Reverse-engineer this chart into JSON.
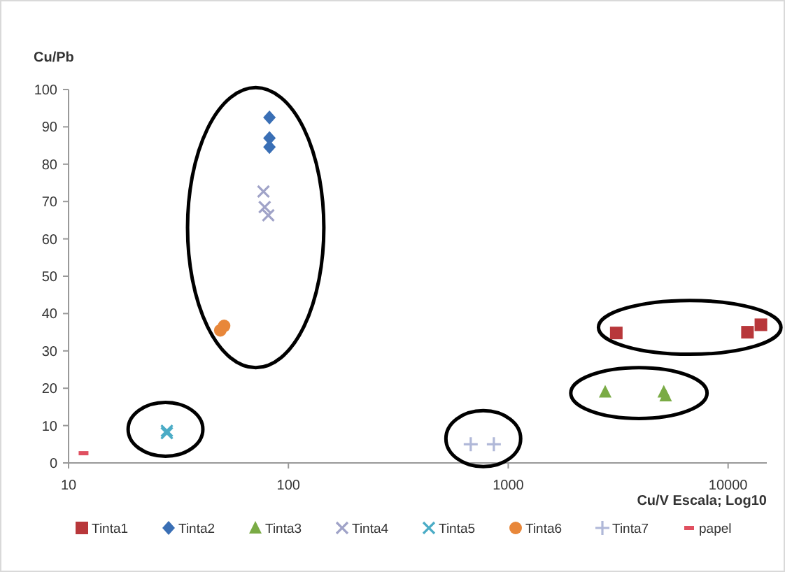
{
  "chart_data": {
    "type": "scatter",
    "ylabel": "Cu/Pb",
    "xlabel": "Cu/V Escala; Log10",
    "log": "x",
    "xlim": [
      10,
      15000
    ],
    "xticks": [
      10,
      100,
      1000,
      10000
    ],
    "ylim": [
      0,
      100
    ],
    "yticks": [
      0,
      10,
      20,
      30,
      40,
      50,
      60,
      70,
      80,
      90,
      100
    ],
    "grid": false,
    "legend": "bottom",
    "series": [
      {
        "name": "Tinta1",
        "color": "#b8373a",
        "marker": "square",
        "x": [
          3100,
          12250,
          14100
        ],
        "values": [
          34.8,
          35,
          37
        ]
      },
      {
        "name": "Tinta2",
        "color": "#3a6fb5",
        "marker": "diamond",
        "x": [
          82,
          82,
          82
        ],
        "values": [
          92.5,
          87,
          84.6
        ]
      },
      {
        "name": "Tinta3",
        "color": "#7aab45",
        "marker": "triangle",
        "x": [
          2760,
          5100,
          5200
        ],
        "values": [
          19,
          19,
          18
        ]
      },
      {
        "name": "Tinta4",
        "color": "#a0a3c8",
        "marker": "cross",
        "x": [
          77,
          78,
          81
        ],
        "values": [
          72.7,
          68.5,
          66.3
        ]
      },
      {
        "name": "Tinta5",
        "color": "#4bacc6",
        "marker": "cross",
        "x": [
          28,
          28
        ],
        "values": [
          8.6,
          8
        ]
      },
      {
        "name": "Tinta6",
        "color": "#e8873a",
        "marker": "circle",
        "x": [
          51,
          49
        ],
        "values": [
          36.7,
          35.5
        ]
      },
      {
        "name": "Tinta7",
        "color": "#b0b8d8",
        "marker": "plus",
        "x": [
          675,
          860
        ],
        "values": [
          5,
          5
        ]
      },
      {
        "name": "papel",
        "color": "#e05060",
        "x": [
          11.7
        ],
        "values": [
          2.6
        ]
      }
    ]
  }
}
